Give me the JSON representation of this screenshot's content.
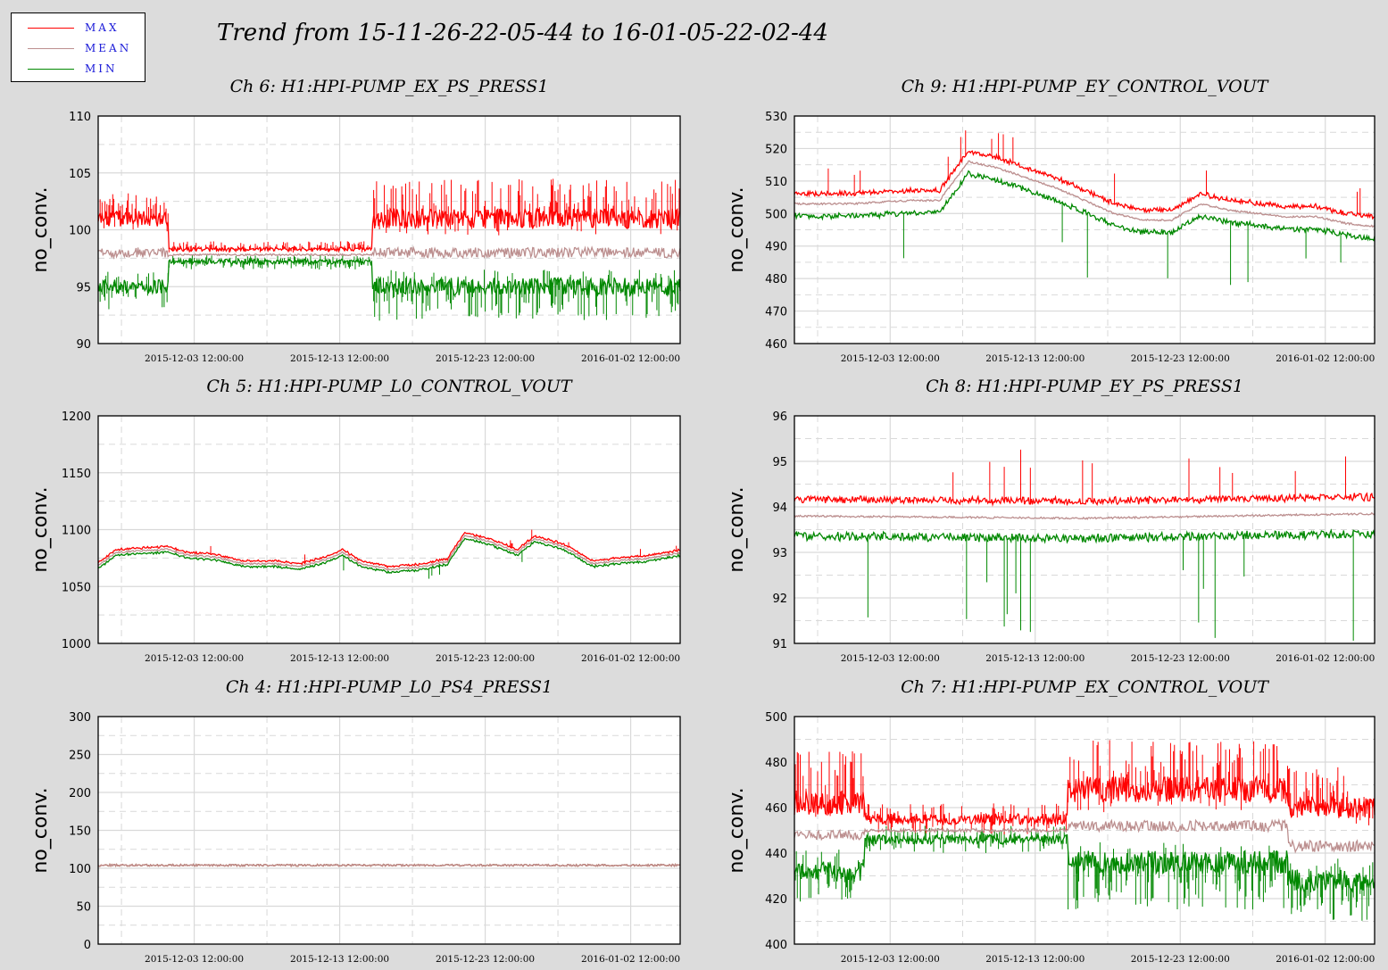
{
  "main_title": "Trend from 15-11-26-22-05-44 to 16-01-05-22-02-44",
  "legend": [
    {
      "label": "MAX",
      "color": "#ff0000"
    },
    {
      "label": "MEAN",
      "color": "#bc8f8f"
    },
    {
      "label": "MIN",
      "color": "#008800"
    }
  ],
  "chart_data": [
    {
      "type": "line",
      "title": "Ch 6: H1:HPI-PUMP_EX_PS_PRESS1",
      "ylabel": "no_conv.",
      "ylim": [
        90,
        110
      ],
      "yticks": [
        90,
        95,
        100,
        105,
        110
      ],
      "xticks": [
        "2015-12-03 12:00:00",
        "2015-12-13 12:00:00",
        "2015-12-23 12:00:00",
        "2016-01-02 12:00:00"
      ],
      "segments": [
        {
          "x": [
            0.0,
            0.12
          ],
          "max": 101.0,
          "mean": 98.0,
          "min": 95.0,
          "max_band": [
            99.5,
            103.5
          ],
          "min_band": [
            93.0,
            96.5
          ]
        },
        {
          "x": [
            0.12,
            0.47
          ],
          "max": 98.3,
          "mean": 97.8,
          "min": 97.2,
          "max_band": [
            98.0,
            99.0
          ],
          "min_band": [
            96.5,
            97.8
          ]
        },
        {
          "x": [
            0.47,
            1.0
          ],
          "max": 101.0,
          "mean": 98.0,
          "min": 95.0,
          "max_band": [
            99.5,
            104.5
          ],
          "min_band": [
            92.0,
            96.5
          ]
        }
      ]
    },
    {
      "type": "line",
      "title": "Ch 9: H1:HPI-PUMP_EY_CONTROL_VOUT",
      "ylabel": "no_conv.",
      "ylim": [
        460,
        530
      ],
      "yticks": [
        460,
        470,
        480,
        490,
        500,
        510,
        520,
        530
      ],
      "xticks": [
        "2015-12-03 12:00:00",
        "2015-12-13 12:00:00",
        "2015-12-23 12:00:00",
        "2016-01-02 12:00:00"
      ],
      "series_profile": {
        "x": [
          0.0,
          0.1,
          0.2,
          0.25,
          0.3,
          0.35,
          0.4,
          0.45,
          0.5,
          0.55,
          0.6,
          0.65,
          0.7,
          0.75,
          0.8,
          0.85,
          0.9,
          0.95,
          1.0
        ],
        "mean": [
          503,
          503,
          504,
          504,
          516,
          514,
          511,
          508,
          504,
          500,
          498,
          498,
          503,
          501,
          500,
          499,
          499,
          497,
          496
        ],
        "max_offset": 2.5,
        "min_offset": -3.0
      }
    },
    {
      "type": "line",
      "title": "Ch 5: H1:HPI-PUMP_L0_CONTROL_VOUT",
      "ylabel": "no_conv.",
      "ylim": [
        1000,
        1200
      ],
      "yticks": [
        1000,
        1050,
        1100,
        1150,
        1200
      ],
      "xticks": [
        "2015-12-03 12:00:00",
        "2015-12-13 12:00:00",
        "2015-12-23 12:00:00",
        "2016-01-02 12:00:00"
      ],
      "series_profile": {
        "x": [
          0.0,
          0.03,
          0.1,
          0.12,
          0.15,
          0.2,
          0.25,
          0.3,
          0.35,
          0.4,
          0.42,
          0.45,
          0.5,
          0.55,
          0.6,
          0.63,
          0.67,
          0.72,
          0.75,
          0.8,
          0.85,
          0.9,
          0.95,
          1.0
        ],
        "mean": [
          1068,
          1080,
          1082,
          1083,
          1078,
          1076,
          1070,
          1070,
          1068,
          1075,
          1080,
          1070,
          1065,
          1067,
          1072,
          1095,
          1090,
          1080,
          1092,
          1085,
          1070,
          1073,
          1075,
          1080
        ],
        "max_offset": 2.0,
        "min_offset": -2.0
      }
    },
    {
      "type": "line",
      "title": "Ch 8: H1:HPI-PUMP_EY_PS_PRESS1",
      "ylabel": "no_conv.",
      "ylim": [
        91,
        96
      ],
      "yticks": [
        91,
        92,
        93,
        94,
        95,
        96
      ],
      "xticks": [
        "2015-12-03 12:00:00",
        "2015-12-13 12:00:00",
        "2015-12-23 12:00:00",
        "2016-01-02 12:00:00"
      ],
      "series_profile": {
        "x": [
          0.0,
          0.5,
          1.0
        ],
        "mean": [
          93.8,
          93.75,
          93.85
        ],
        "max_offset": 0.3,
        "min_offset": -0.35
      }
    },
    {
      "type": "line",
      "title": "Ch 4: H1:HPI-PUMP_L0_PS4_PRESS1",
      "ylabel": "no_conv.",
      "ylim": [
        0,
        300
      ],
      "yticks": [
        0,
        50,
        100,
        150,
        200,
        250,
        300
      ],
      "xticks": [
        "2015-12-03 12:00:00",
        "2015-12-13 12:00:00",
        "2015-12-23 12:00:00",
        "2016-01-02 12:00:00"
      ],
      "series_profile": {
        "x": [
          0.0,
          1.0
        ],
        "mean": [
          104,
          104
        ],
        "max_offset": 0,
        "min_offset": 0
      }
    },
    {
      "type": "line",
      "title": "Ch 7: H1:HPI-PUMP_EX_CONTROL_VOUT",
      "ylabel": "no_conv.",
      "ylim": [
        400,
        500
      ],
      "yticks": [
        400,
        420,
        440,
        460,
        480,
        500
      ],
      "xticks": [
        "2015-12-03 12:00:00",
        "2015-12-13 12:00:00",
        "2015-12-23 12:00:00",
        "2016-01-02 12:00:00"
      ],
      "segments": [
        {
          "x": [
            0.0,
            0.12
          ],
          "max": 462,
          "mean": 448,
          "min": 432,
          "max_band": [
            455,
            485
          ],
          "min_band": [
            418,
            442
          ]
        },
        {
          "x": [
            0.12,
            0.47
          ],
          "max": 455,
          "mean": 450,
          "min": 446,
          "max_band": [
            448,
            462
          ],
          "min_band": [
            440,
            452
          ]
        },
        {
          "x": [
            0.47,
            0.85
          ],
          "max": 468,
          "mean": 452,
          "min": 436,
          "max_band": [
            458,
            490
          ],
          "min_band": [
            415,
            445
          ]
        },
        {
          "x": [
            0.85,
            1.0
          ],
          "max": 460,
          "mean": 443,
          "min": 428,
          "max_band": [
            452,
            478
          ],
          "min_band": [
            410,
            438
          ]
        }
      ]
    }
  ]
}
